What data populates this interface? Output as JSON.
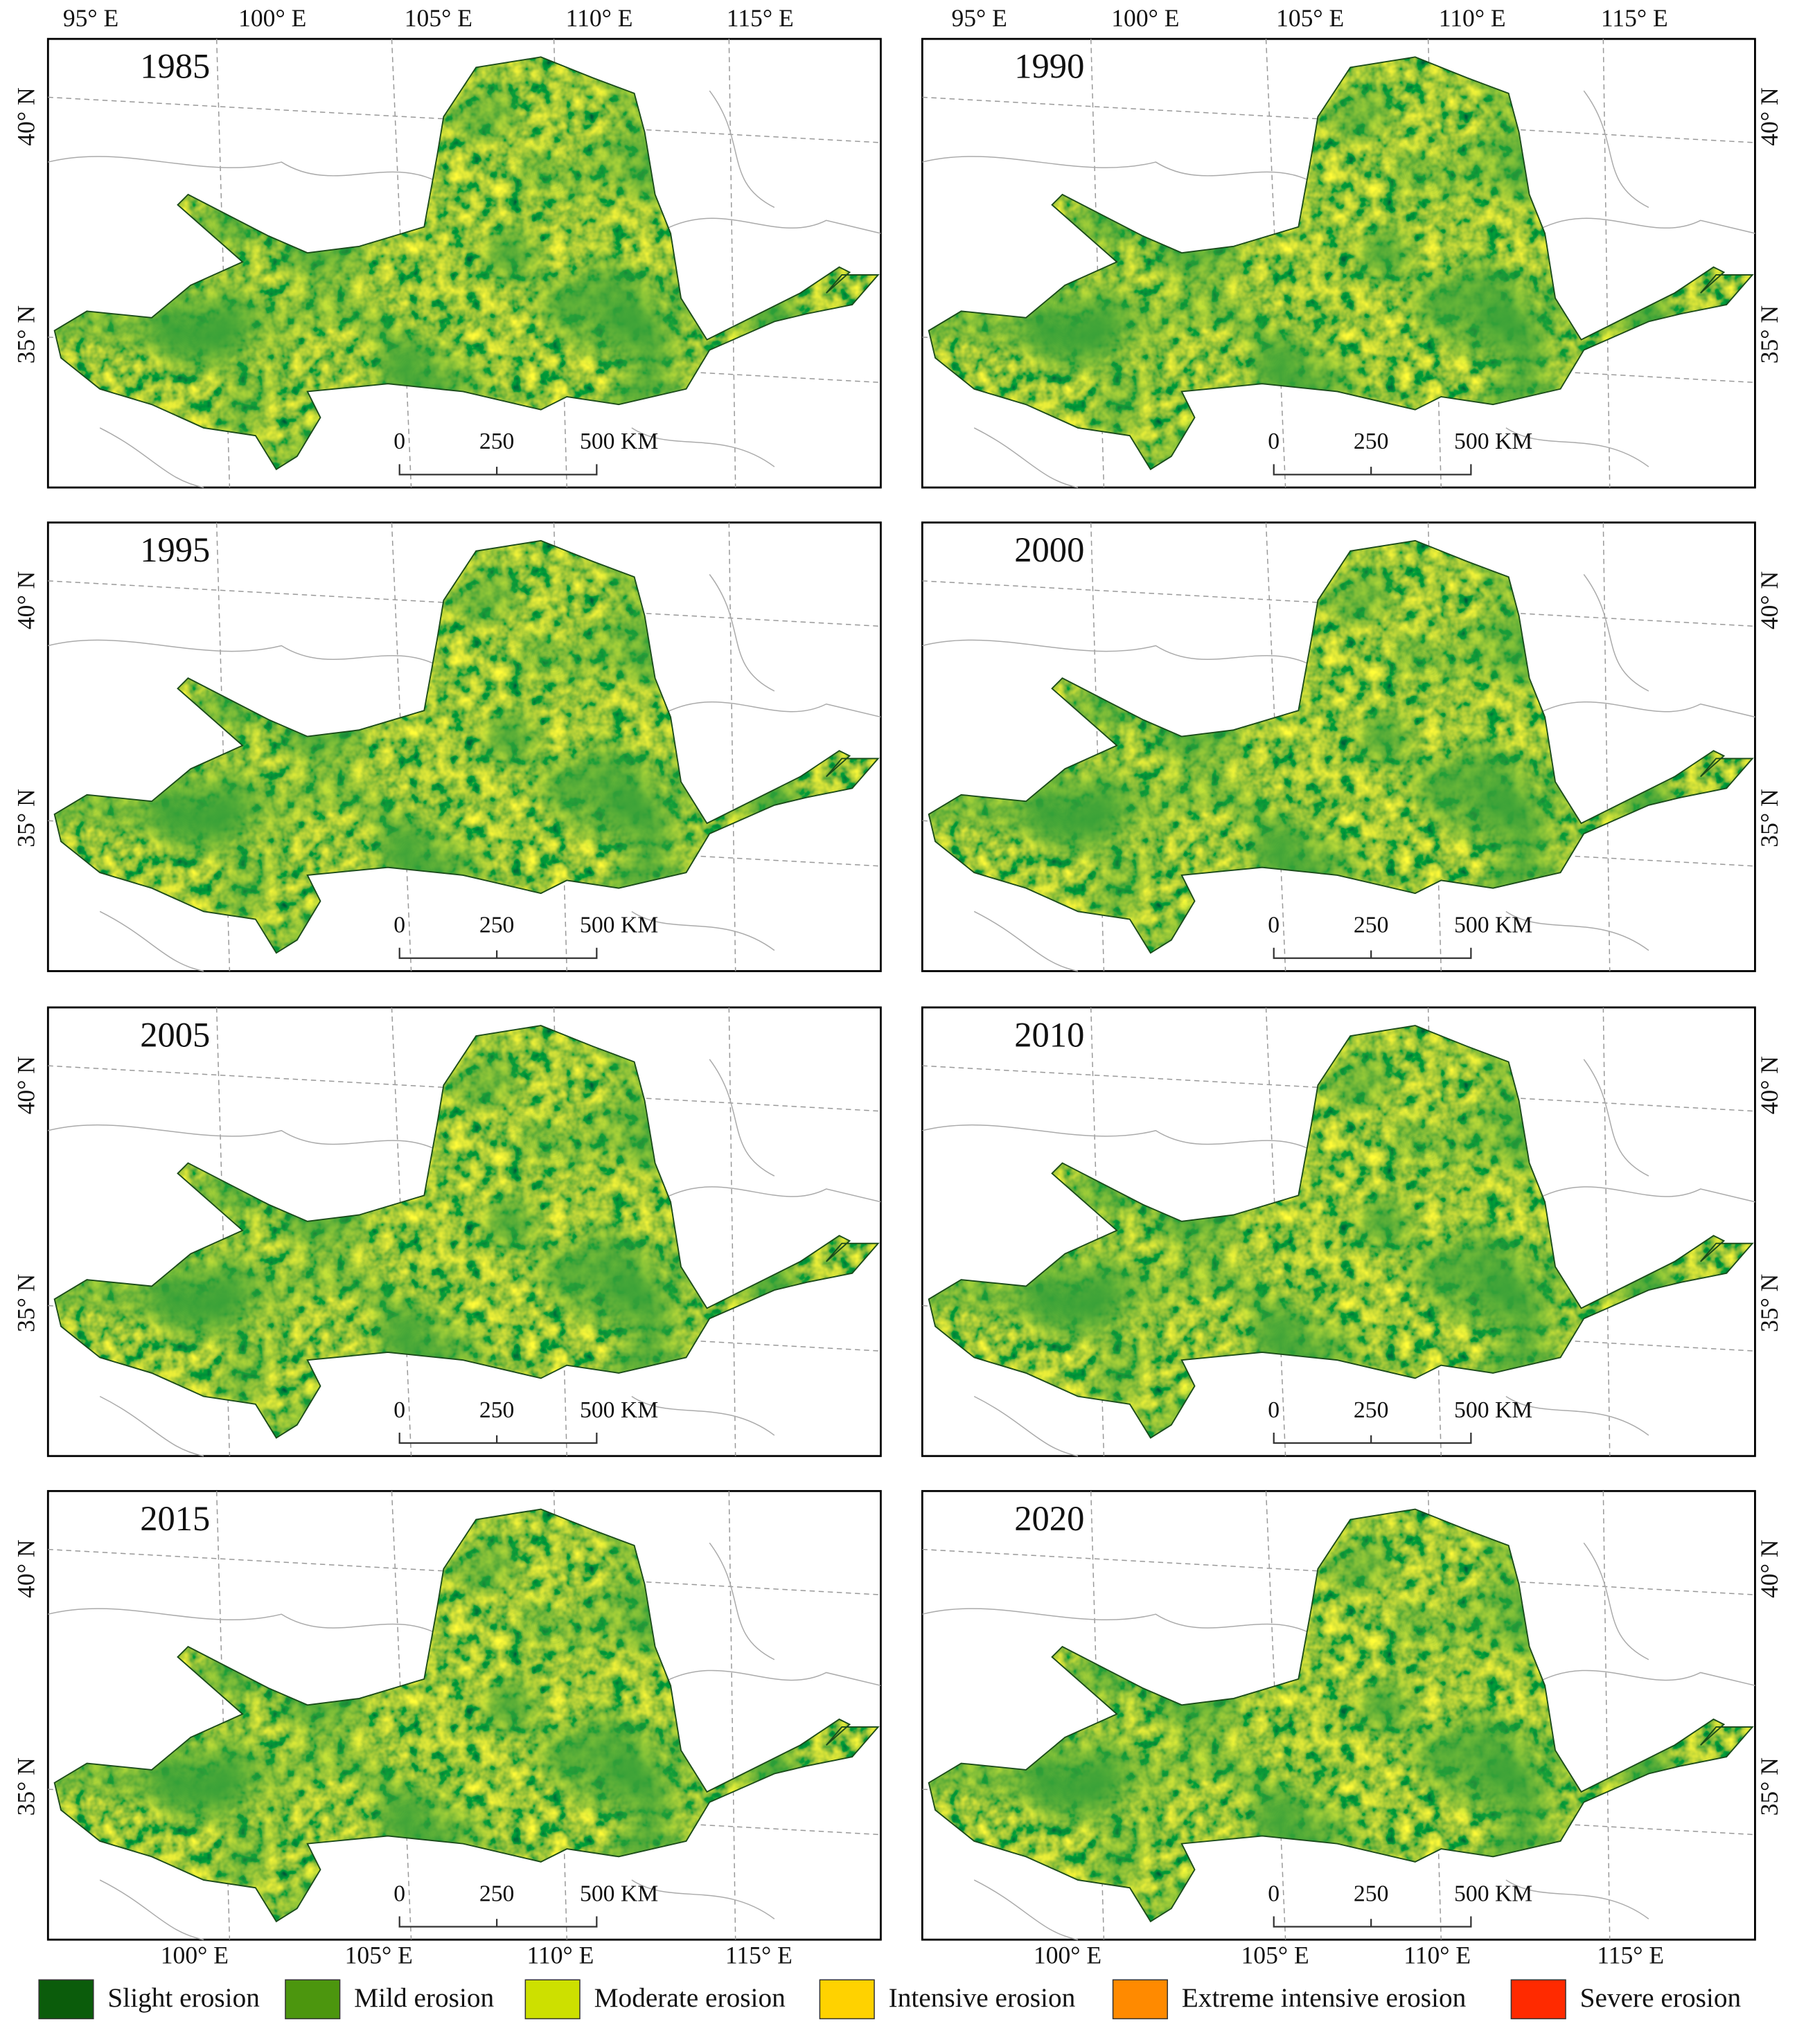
{
  "panels": [
    {
      "year": "1985"
    },
    {
      "year": "1990"
    },
    {
      "year": "1995"
    },
    {
      "year": "2000"
    },
    {
      "year": "2005"
    },
    {
      "year": "2010"
    },
    {
      "year": "2015"
    },
    {
      "year": "2020"
    }
  ],
  "top_lon_labels": [
    "95° E",
    "100° E",
    "105° E",
    "110° E",
    "115° E"
  ],
  "bottom_lon_labels": [
    "100° E",
    "105° E",
    "110° E",
    "115° E"
  ],
  "lat_labels": [
    "40° N",
    "35° N"
  ],
  "scale_bar": {
    "labels": [
      "0",
      "250",
      "500 KM"
    ]
  },
  "legend": [
    {
      "label": "Slight erosion",
      "color": "#0b5c0b"
    },
    {
      "label": "Mild erosion",
      "color": "#4c960e"
    },
    {
      "label": "Moderate erosion",
      "color": "#cde000"
    },
    {
      "label": "Intensive erosion",
      "color": "#ffd200"
    },
    {
      "label": "Extreme intensive erosion",
      "color": "#ff8a00"
    },
    {
      "label": "Severe erosion",
      "color": "#ff2a00"
    }
  ]
}
